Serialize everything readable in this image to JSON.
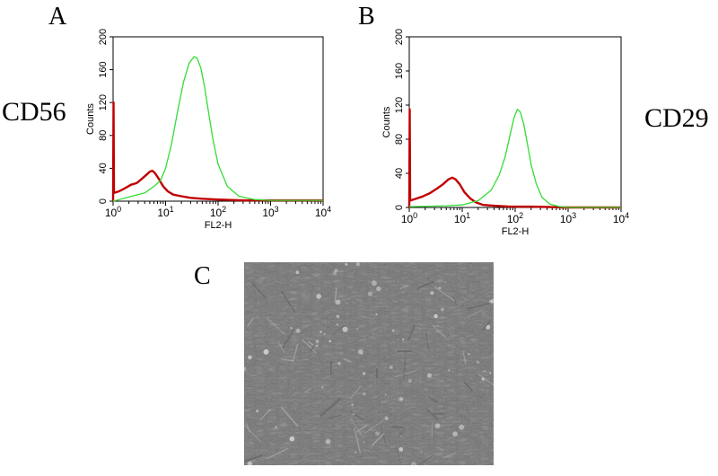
{
  "panels": {
    "A": "A",
    "B": "B",
    "C": "C"
  },
  "markers": {
    "left": "CD56",
    "right": "CD29"
  },
  "colors": {
    "isotype": "#c00000",
    "stained": "#33dd33",
    "axes": "#000000"
  },
  "chart_data": [
    {
      "type": "line",
      "panel": "A",
      "xlabel": "FL2-H",
      "ylabel": "Counts",
      "xscale": "log",
      "xlim": [
        1,
        10000
      ],
      "ylim": [
        0,
        200
      ],
      "xticks": [
        {
          "value": 1,
          "base": "10",
          "exp": "0"
        },
        {
          "value": 10,
          "base": "10",
          "exp": "1"
        },
        {
          "value": 100,
          "base": "10",
          "exp": "2"
        },
        {
          "value": 1000,
          "base": "10",
          "exp": "3"
        },
        {
          "value": 10000,
          "base": "10",
          "exp": "4"
        }
      ],
      "yticks": [
        0,
        40,
        80,
        120,
        160,
        200
      ],
      "series": [
        {
          "color": "#c00000",
          "x": [
            1,
            1.02,
            1.04,
            1.3,
            1.7,
            2.2,
            2.8,
            3.5,
            4.3,
            5,
            5.6,
            6.3,
            7.3,
            9,
            11,
            14,
            20,
            30,
            50,
            100,
            300,
            1000,
            10000
          ],
          "y": [
            0,
            120,
            10,
            12,
            16,
            20,
            22,
            27,
            32,
            36,
            37,
            34,
            28,
            18,
            12,
            8,
            6,
            4,
            3,
            2,
            1,
            1,
            1
          ]
        },
        {
          "color": "#33dd33",
          "x": [
            1,
            2,
            4,
            6,
            8,
            10,
            13,
            17,
            22,
            28,
            35,
            40,
            47,
            55,
            65,
            80,
            100,
            150,
            250,
            500,
            1000,
            10000
          ],
          "y": [
            0,
            5,
            10,
            18,
            25,
            40,
            70,
            110,
            145,
            168,
            176,
            174,
            162,
            140,
            110,
            75,
            45,
            18,
            6,
            2,
            1,
            1
          ]
        }
      ]
    },
    {
      "type": "line",
      "panel": "B",
      "xlabel": "FL2-H",
      "ylabel": "Counts",
      "xscale": "log",
      "xlim": [
        1,
        10000
      ],
      "ylim": [
        0,
        200
      ],
      "xticks": [
        {
          "value": 1,
          "base": "10",
          "exp": "0"
        },
        {
          "value": 10,
          "base": "10",
          "exp": "1"
        },
        {
          "value": 100,
          "base": "10",
          "exp": "2"
        },
        {
          "value": 1000,
          "base": "10",
          "exp": "3"
        },
        {
          "value": 10000,
          "base": "10",
          "exp": "4"
        }
      ],
      "yticks": [
        0,
        40,
        80,
        120,
        160,
        200
      ],
      "series": [
        {
          "color": "#c00000",
          "x": [
            1,
            1.02,
            1.04,
            1.3,
            1.8,
            2.5,
            3.3,
            4.3,
            5.5,
            6.5,
            7.5,
            9,
            11,
            14,
            18,
            25,
            40,
            80,
            200,
            1000,
            10000
          ],
          "y": [
            0,
            115,
            8,
            10,
            13,
            17,
            22,
            27,
            33,
            35,
            33,
            27,
            18,
            11,
            6,
            3,
            2,
            1,
            1,
            0,
            0
          ]
        },
        {
          "color": "#33dd33",
          "x": [
            1,
            5,
            10,
            20,
            35,
            50,
            65,
            80,
            95,
            110,
            125,
            145,
            170,
            200,
            250,
            320,
            450,
            700,
            1000,
            10000
          ],
          "y": [
            1,
            2,
            3,
            8,
            20,
            38,
            60,
            85,
            105,
            115,
            112,
            98,
            75,
            50,
            28,
            12,
            4,
            1,
            0,
            0
          ]
        }
      ]
    }
  ]
}
